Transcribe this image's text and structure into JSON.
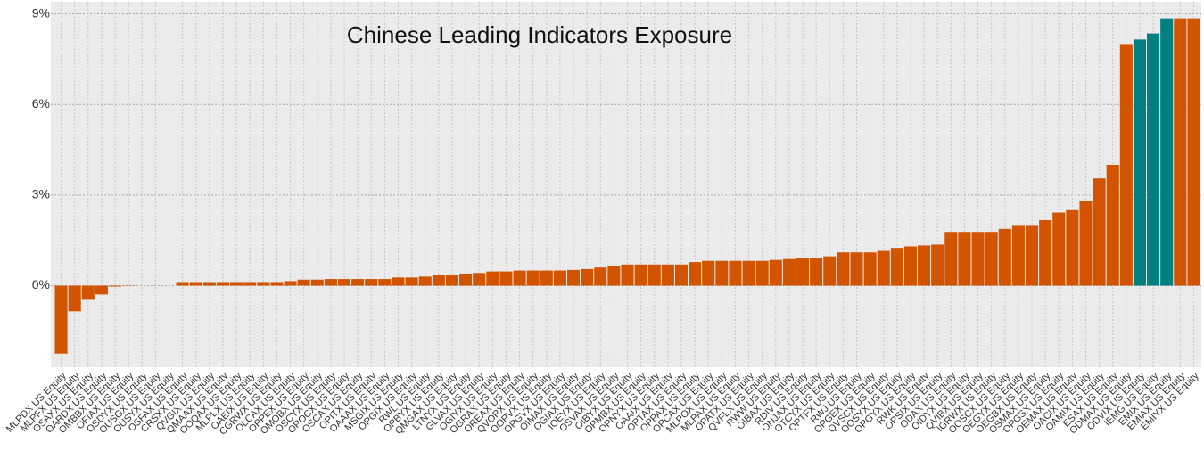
{
  "chart_data": {
    "type": "bar",
    "title": "Chinese Leading Indicators Exposure",
    "categories": [
      "MLPDX US Equity",
      "MLPFX US Equity",
      "OSAXX US Equity",
      "OARDX US Equity",
      "OMBBX US Equity",
      "OFIAX US Equity",
      "OSDYX US Equity",
      "OUSGX US Equity",
      "OUSYX US Equity",
      "OSFAX US Equity",
      "CRSXX US Equity",
      "QVGIX US Equity",
      "QMAAX US Equity",
      "OOQAX US Equity",
      "MLPLX US Equity",
      "OAEIX US Equity",
      "CGRWX US Equity",
      "OLCAX US Equity",
      "OPPEX US Equity",
      "OMOBX US Equity",
      "OSCYX US Equity",
      "OPOCX US Equity",
      "OSCAX US Equity",
      "OPITX US Equity",
      "OAAAX US Equity",
      "MSGIX US Equity",
      "OPGIX US Equity",
      "RWL US Equity",
      "OPBYX US Equity",
      "QMGAX US Equity",
      "LTNYX US Equity",
      "GLVAX US Equity",
      "OGIYX US Equity",
      "OGRAX US Equity",
      "OREAX US Equity",
      "QVOPX US Equity",
      "OOPVX US Equity",
      "OPGVX US Equity",
      "OIMAX US Equity",
      "OGIAX US Equity",
      "IOEYX US Equity",
      "OSVAX US Equity",
      "OIBYX US Equity",
      "OPMBX US Equity",
      "OPNYX US Equity",
      "OAAIX US Equity",
      "OPTAX US Equity",
      "OPPAX US Equity",
      "OPCAX US Equity",
      "MLPOX US Equity",
      "MLPAX US Equity",
      "OPATX US Equity",
      "QVFLX US Equity",
      "RWW US Equity",
      "OIBAX US Equity",
      "RDIV US Equity",
      "ONJAX US Equity",
      "OTCYX US Equity",
      "OPTFX US Equity",
      "RWJ US Equity",
      "OPGEX US Equity",
      "QVSCX US Equity",
      "OOSYX US Equity",
      "OPGYX US Equity",
      "RWK US Equity",
      "OPSIX US Equity",
      "ODAX US Equity",
      "OIDYX US Equity",
      "QVIBX US Equity",
      "IGRWX US Equity",
      "OOSCX US Equity",
      "OEGYX US Equity",
      "OEGBX US Equity",
      "OSMAX US Equity",
      "OPGSX US Equity",
      "OEMAX US Equity",
      "OACIX US Equity",
      "OAMIX US Equity",
      "ESAX US Equity",
      "ODMAX US Equity",
      "ODVIX US Equity",
      "IEMG US Equity",
      "EMIX US Equity",
      "EMIAX US Equity",
      "EMIYX US Equity"
    ],
    "values": [
      -2.25,
      -0.85,
      -0.47,
      -0.29,
      -0.03,
      -0.01,
      0,
      0,
      0,
      0.12,
      0.12,
      0.12,
      0.12,
      0.12,
      0.12,
      0.12,
      0.12,
      0.15,
      0.2,
      0.2,
      0.22,
      0.22,
      0.22,
      0.22,
      0.22,
      0.27,
      0.27,
      0.3,
      0.36,
      0.36,
      0.4,
      0.42,
      0.47,
      0.47,
      0.5,
      0.5,
      0.5,
      0.5,
      0.52,
      0.55,
      0.6,
      0.65,
      0.7,
      0.7,
      0.7,
      0.7,
      0.7,
      0.78,
      0.82,
      0.82,
      0.82,
      0.82,
      0.82,
      0.85,
      0.88,
      0.9,
      0.9,
      0.97,
      1.1,
      1.1,
      1.1,
      1.15,
      1.25,
      1.3,
      1.33,
      1.36,
      1.78,
      1.78,
      1.78,
      1.78,
      1.88,
      1.98,
      1.98,
      2.17,
      2.42,
      2.5,
      2.82,
      3.55,
      4.0,
      8.0,
      8.15,
      8.35,
      8.85,
      8.85,
      8.85
    ],
    "colors": [
      "#d35400",
      "#d35400",
      "#d35400",
      "#d35400",
      "#d35400",
      "#d35400",
      "#d35400",
      "#d35400",
      "#d35400",
      "#d35400",
      "#d35400",
      "#d35400",
      "#d35400",
      "#d35400",
      "#d35400",
      "#d35400",
      "#d35400",
      "#d35400",
      "#d35400",
      "#d35400",
      "#d35400",
      "#d35400",
      "#d35400",
      "#d35400",
      "#d35400",
      "#d35400",
      "#d35400",
      "#d35400",
      "#d35400",
      "#d35400",
      "#d35400",
      "#d35400",
      "#d35400",
      "#d35400",
      "#d35400",
      "#d35400",
      "#d35400",
      "#d35400",
      "#d35400",
      "#d35400",
      "#d35400",
      "#d35400",
      "#d35400",
      "#d35400",
      "#d35400",
      "#d35400",
      "#d35400",
      "#d35400",
      "#d35400",
      "#d35400",
      "#d35400",
      "#d35400",
      "#d35400",
      "#d35400",
      "#d35400",
      "#d35400",
      "#d35400",
      "#d35400",
      "#d35400",
      "#d35400",
      "#d35400",
      "#d35400",
      "#d35400",
      "#d35400",
      "#d35400",
      "#d35400",
      "#d35400",
      "#d35400",
      "#d35400",
      "#d35400",
      "#d35400",
      "#d35400",
      "#d35400",
      "#d35400",
      "#d35400",
      "#d35400",
      "#d35400",
      "#d35400",
      "#d35400",
      "#d35400",
      "#008080",
      "#008080",
      "#008080",
      "#d35400",
      "#d35400"
    ],
    "ylim": [
      -2.7,
      9.4
    ],
    "yticks": [
      {
        "value": 0,
        "label": "0%"
      },
      {
        "value": 3,
        "label": "3%"
      },
      {
        "value": 6,
        "label": "6%"
      },
      {
        "value": 9,
        "label": "9%"
      }
    ],
    "grid": true
  }
}
